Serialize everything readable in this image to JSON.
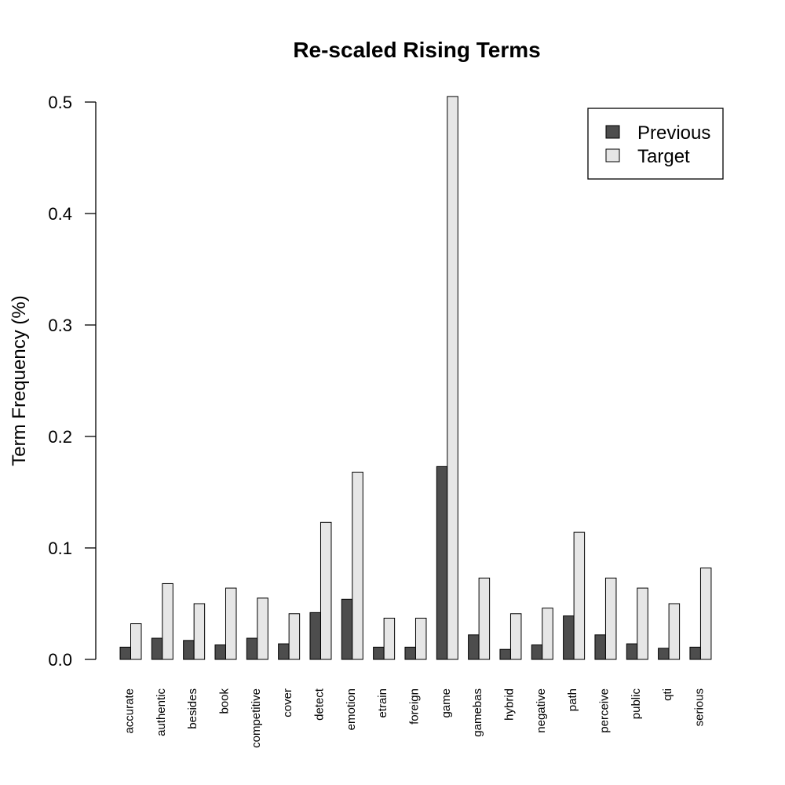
{
  "chart_data": {
    "type": "bar",
    "title": "Re-scaled Rising Terms",
    "xlabel": "",
    "ylabel": "Term Frequency (%)",
    "ylim": [
      0,
      0.5
    ],
    "yticks": [
      "0.0",
      "0.1",
      "0.2",
      "0.3",
      "0.4",
      "0.5"
    ],
    "legend_position": "top-right",
    "categories": [
      "accurate",
      "authentic",
      "besides",
      "book",
      "competitive",
      "cover",
      "detect",
      "emotion",
      "etrain",
      "foreign",
      "game",
      "gamebas",
      "hybrid",
      "negative",
      "path",
      "perceive",
      "public",
      "qti",
      "serious"
    ],
    "series": [
      {
        "name": "Previous",
        "color": "#4d4d4d",
        "values": [
          0.011,
          0.019,
          0.017,
          0.013,
          0.019,
          0.014,
          0.042,
          0.054,
          0.011,
          0.011,
          0.173,
          0.022,
          0.009,
          0.013,
          0.039,
          0.022,
          0.014,
          0.01,
          0.011
        ]
      },
      {
        "name": "Target",
        "color": "#e6e6e6",
        "values": [
          0.032,
          0.068,
          0.05,
          0.064,
          0.055,
          0.041,
          0.123,
          0.168,
          0.037,
          0.037,
          0.505,
          0.073,
          0.041,
          0.046,
          0.114,
          0.073,
          0.064,
          0.05,
          0.082
        ]
      }
    ]
  }
}
